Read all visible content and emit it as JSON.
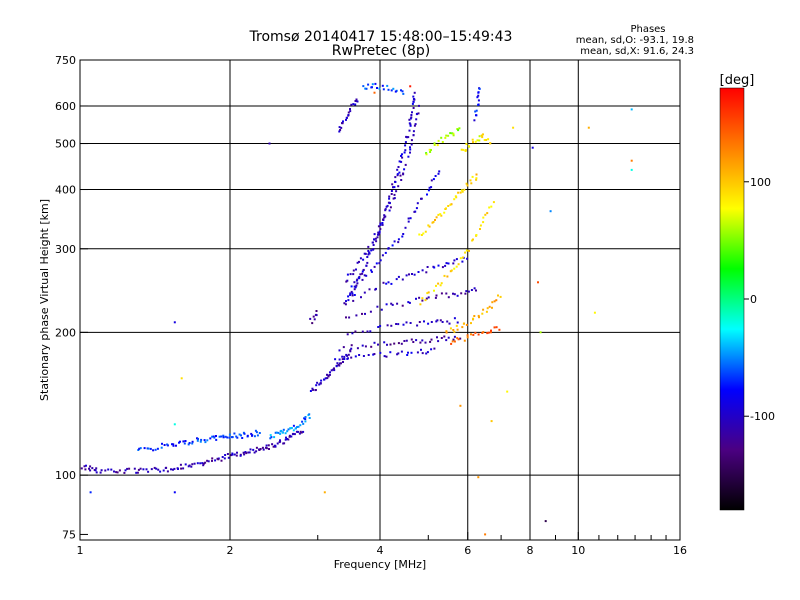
{
  "chart_data": {
    "type": "scatter",
    "title": "Tromsø 20140417 15:48:00–15:49:43",
    "subtitle": "RwPretec (8p)",
    "stats": {
      "heading": "Phases",
      "line1": "mean, sd,O: -93.1, 19.8",
      "line2": "mean, sd,X:  91.6, 24.3"
    },
    "xlabel": "Frequency [MHz]",
    "ylabel": "Stationary phase Virtual Height [km]",
    "x_scale": "log",
    "y_scale": "log",
    "xlim": [
      1,
      16
    ],
    "ylim": [
      73,
      750
    ],
    "x_ticks": [
      1,
      2,
      4,
      6,
      8,
      10,
      16
    ],
    "x_tick_labels": [
      "1",
      "2",
      "4",
      "6",
      "8",
      "10",
      "16"
    ],
    "x_minor_ticks": [
      3,
      5,
      7,
      9,
      11,
      12,
      13,
      14,
      15
    ],
    "y_ticks": [
      75,
      100,
      200,
      300,
      400,
      500,
      600,
      750
    ],
    "y_tick_labels": [
      "75",
      "100",
      "200",
      "300",
      "400",
      "500",
      "600",
      "750"
    ],
    "grid": true,
    "grid_x": [
      2,
      4,
      6,
      8,
      10
    ],
    "grid_y": [
      100,
      200,
      300,
      400,
      500,
      600
    ],
    "colorbar": {
      "label": "[deg]",
      "range": [
        -180,
        180
      ],
      "tick_values": [
        100,
        0,
        -100
      ],
      "tick_labels": [
        "100",
        "0",
        "-100"
      ],
      "stops": [
        "#000000",
        "#4b0082",
        "#0000ff",
        "#00ffff",
        "#00ff00",
        "#ffff00",
        "#ff8000",
        "#ff0000"
      ]
    },
    "series": [
      {
        "mode": "O",
        "segments": [
          {
            "points": [
              [
                1.0,
                105
              ],
              [
                1.05,
                103
              ],
              [
                1.1,
                102
              ],
              [
                1.2,
                102
              ],
              [
                1.3,
                102
              ],
              [
                1.4,
                103
              ],
              [
                1.5,
                103
              ],
              [
                1.6,
                104
              ],
              [
                1.7,
                105
              ],
              [
                1.8,
                107
              ],
              [
                1.9,
                108
              ],
              [
                2.0,
                110
              ],
              [
                2.1,
                111
              ],
              [
                2.2,
                112
              ],
              [
                2.3,
                114
              ],
              [
                2.4,
                115
              ],
              [
                2.5,
                117
              ],
              [
                2.6,
                119
              ],
              [
                2.7,
                122
              ],
              [
                2.8,
                124
              ]
            ],
            "phase": -110
          },
          {
            "points": [
              [
                1.3,
                113
              ],
              [
                1.4,
                114
              ],
              [
                1.5,
                116
              ],
              [
                1.6,
                117
              ],
              [
                1.7,
                118
              ],
              [
                1.8,
                119
              ],
              [
                1.9,
                120
              ],
              [
                2.0,
                121
              ],
              [
                2.1,
                121
              ],
              [
                2.2,
                122
              ],
              [
                2.3,
                123
              ]
            ],
            "phase": -70
          },
          {
            "points": [
              [
                2.4,
                120
              ],
              [
                2.5,
                122
              ],
              [
                2.6,
                124
              ],
              [
                2.7,
                126
              ],
              [
                2.8,
                130
              ],
              [
                2.9,
                134
              ]
            ],
            "phase": -55
          },
          {
            "points": [
              [
                2.9,
                150
              ],
              [
                3.0,
                155
              ],
              [
                3.1,
                160
              ],
              [
                3.2,
                165
              ],
              [
                3.3,
                170
              ],
              [
                3.4,
                176
              ],
              [
                3.5,
                182
              ]
            ],
            "phase": -105
          },
          {
            "points": [
              [
                2.9,
                210
              ],
              [
                3.0,
                220
              ]
            ],
            "phase": -115
          },
          {
            "points": [
              [
                3.4,
                230
              ],
              [
                3.5,
                240
              ],
              [
                3.6,
                255
              ],
              [
                3.7,
                270
              ],
              [
                3.8,
                290
              ],
              [
                3.9,
                310
              ],
              [
                4.0,
                335
              ],
              [
                4.1,
                360
              ],
              [
                4.2,
                390
              ],
              [
                4.3,
                420
              ],
              [
                4.4,
                455
              ],
              [
                4.5,
                500
              ],
              [
                4.6,
                550
              ],
              [
                4.65,
                600
              ],
              [
                4.7,
                640
              ]
            ],
            "phase": -100
          },
          {
            "points": [
              [
                3.4,
                255
              ],
              [
                3.6,
                275
              ],
              [
                3.8,
                300
              ],
              [
                4.0,
                330
              ],
              [
                4.2,
                370
              ],
              [
                4.4,
                420
              ],
              [
                4.6,
                480
              ],
              [
                4.7,
                540
              ],
              [
                4.8,
                600
              ]
            ],
            "phase": -105
          },
          {
            "points": [
              [
                3.5,
                250
              ],
              [
                3.8,
                268
              ],
              [
                4.1,
                290
              ],
              [
                4.4,
                320
              ],
              [
                4.7,
                360
              ],
              [
                5.0,
                400
              ],
              [
                5.3,
                440
              ]
            ],
            "phase": -95
          },
          {
            "points": [
              [
                3.5,
                235
              ],
              [
                4.0,
                250
              ],
              [
                4.5,
                262
              ],
              [
                5.0,
                272
              ],
              [
                5.5,
                280
              ],
              [
                6.0,
                288
              ]
            ],
            "phase": -100
          },
          {
            "points": [
              [
                3.4,
                215
              ],
              [
                4.0,
                225
              ],
              [
                4.6,
                232
              ],
              [
                5.2,
                238
              ],
              [
                5.8,
                242
              ],
              [
                6.3,
                246
              ]
            ],
            "phase": -110
          },
          {
            "points": [
              [
                3.4,
                198
              ],
              [
                4.0,
                204
              ],
              [
                4.6,
                208
              ],
              [
                5.2,
                210
              ],
              [
                5.8,
                212
              ]
            ],
            "phase": -105
          },
          {
            "points": [
              [
                3.3,
                185
              ],
              [
                3.8,
                188
              ],
              [
                4.3,
                190
              ],
              [
                4.8,
                192
              ],
              [
                5.3,
                194
              ],
              [
                5.8,
                195
              ]
            ],
            "phase": -115
          },
          {
            "points": [
              [
                3.2,
                175
              ],
              [
                3.7,
                178
              ],
              [
                4.2,
                180
              ],
              [
                4.7,
                182
              ],
              [
                5.2,
                183
              ]
            ],
            "phase": -100
          },
          {
            "points": [
              [
                3.3,
                530
              ],
              [
                3.4,
                560
              ],
              [
                3.5,
                590
              ],
              [
                3.6,
                620
              ]
            ],
            "phase": -105
          },
          {
            "points": [
              [
                3.7,
                660
              ],
              [
                3.9,
                660
              ],
              [
                4.2,
                655
              ],
              [
                4.5,
                640
              ]
            ],
            "phase": -60
          },
          {
            "points": [
              [
                6.2,
                560
              ],
              [
                6.3,
                610
              ],
              [
                6.35,
                660
              ]
            ],
            "phase": -80
          }
        ]
      },
      {
        "mode": "X",
        "segments": [
          {
            "points": [
              [
                4.8,
                320
              ],
              [
                5.1,
                340
              ],
              [
                5.4,
                360
              ],
              [
                5.7,
                385
              ],
              [
                6.0,
                410
              ],
              [
                6.3,
                430
              ]
            ],
            "phase": 95
          },
          {
            "points": [
              [
                4.8,
                230
              ],
              [
                5.2,
                250
              ],
              [
                5.6,
                270
              ],
              [
                6.0,
                300
              ],
              [
                6.4,
                340
              ],
              [
                6.8,
                380
              ]
            ],
            "phase": 90
          },
          {
            "points": [
              [
                5.4,
                200
              ],
              [
                5.8,
                205
              ],
              [
                6.2,
                215
              ],
              [
                6.6,
                225
              ],
              [
                7.0,
                240
              ]
            ],
            "phase": 110
          },
          {
            "points": [
              [
                5.5,
                190
              ],
              [
                6.0,
                195
              ],
              [
                6.5,
                200
              ],
              [
                7.0,
                205
              ]
            ],
            "phase": 140
          },
          {
            "points": [
              [
                5.8,
                480
              ],
              [
                6.1,
                500
              ],
              [
                6.4,
                520
              ],
              [
                6.7,
                500
              ]
            ],
            "phase": 80
          },
          {
            "points": [
              [
                4.9,
                470
              ],
              [
                5.2,
                500
              ],
              [
                5.5,
                520
              ],
              [
                5.8,
                540
              ]
            ],
            "phase": 60
          }
        ]
      }
    ],
    "scatter": [
      [
        1.05,
        92,
        -70
      ],
      [
        1.55,
        92,
        -80
      ],
      [
        1.55,
        210,
        -90
      ],
      [
        1.6,
        160,
        90
      ],
      [
        1.55,
        128,
        -20
      ],
      [
        2.4,
        500,
        -110
      ],
      [
        3.1,
        92,
        110
      ],
      [
        6.3,
        99,
        120
      ],
      [
        6.5,
        75,
        130
      ],
      [
        7.4,
        540,
        90
      ],
      [
        8.1,
        490,
        -90
      ],
      [
        8.4,
        200,
        60
      ],
      [
        8.8,
        360,
        -50
      ],
      [
        10.5,
        540,
        110
      ],
      [
        10.8,
        220,
        80
      ],
      [
        12.8,
        460,
        130
      ],
      [
        12.8,
        590,
        -40
      ],
      [
        12.8,
        440,
        -20
      ],
      [
        8.3,
        255,
        150
      ],
      [
        7.2,
        150,
        80
      ],
      [
        6.7,
        130,
        100
      ],
      [
        5.8,
        140,
        120
      ],
      [
        4.6,
        660,
        170
      ],
      [
        3.9,
        640,
        140
      ],
      [
        8.6,
        80,
        -150
      ]
    ]
  }
}
